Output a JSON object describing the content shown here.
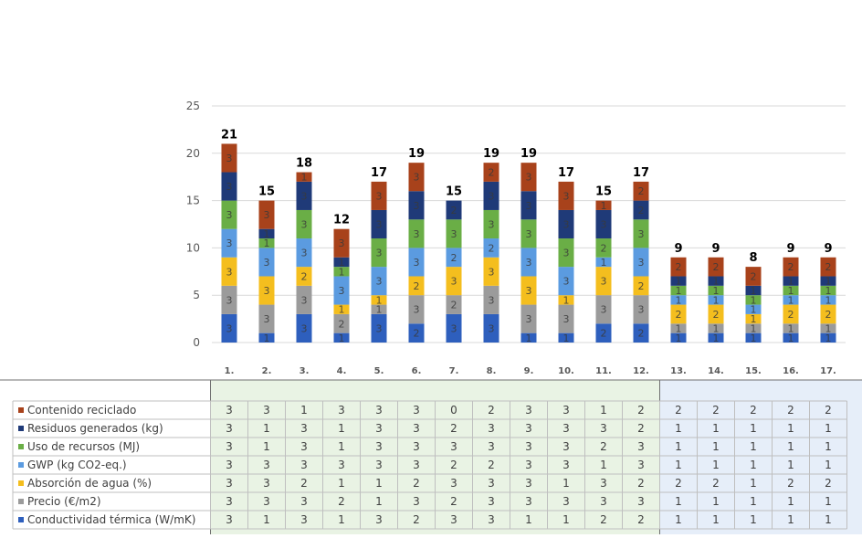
{
  "chart_data": {
    "type": "bar",
    "stacked": true,
    "categories": [
      "1.",
      "2.",
      "3.",
      "4.",
      "5.",
      "6.",
      "7.",
      "8.",
      "9.",
      "10.",
      "11.",
      "12.",
      "13.",
      "14.",
      "15.",
      "16.",
      "17."
    ],
    "ylim": [
      0,
      25
    ],
    "yticks": [
      0,
      5,
      10,
      15,
      20,
      25
    ],
    "grid": true,
    "totals": [
      21,
      15,
      18,
      12,
      17,
      19,
      15,
      19,
      19,
      17,
      15,
      17,
      9,
      9,
      8,
      9,
      9
    ],
    "series": [
      {
        "name": "Conductividad térmica (W/mK)",
        "color": "#2e5fbd",
        "values": [
          3,
          1,
          3,
          1,
          3,
          2,
          3,
          3,
          1,
          1,
          2,
          2,
          1,
          1,
          1,
          1,
          1
        ]
      },
      {
        "name": "Precio (€/m2)",
        "color": "#9b9b9b",
        "values": [
          3,
          3,
          3,
          2,
          1,
          3,
          2,
          3,
          3,
          3,
          3,
          3,
          1,
          1,
          1,
          1,
          1
        ]
      },
      {
        "name": "Absorción de agua (%)",
        "color": "#f4be1e",
        "values": [
          3,
          3,
          2,
          1,
          1,
          2,
          3,
          3,
          3,
          1,
          3,
          2,
          2,
          2,
          1,
          2,
          2
        ]
      },
      {
        "name": "GWP (kg CO2-eq.)",
        "color": "#5b9be0",
        "values": [
          3,
          3,
          3,
          3,
          3,
          3,
          2,
          2,
          3,
          3,
          1,
          3,
          1,
          1,
          1,
          1,
          1
        ]
      },
      {
        "name": "Uso de recursos (MJ)",
        "color": "#6aae46",
        "values": [
          3,
          1,
          3,
          1,
          3,
          3,
          3,
          3,
          3,
          3,
          2,
          3,
          1,
          1,
          1,
          1,
          1
        ]
      },
      {
        "name": "Residuos generados  (kg)",
        "color": "#1f3a78",
        "values": [
          3,
          1,
          3,
          1,
          3,
          3,
          2,
          3,
          3,
          3,
          3,
          2,
          1,
          1,
          1,
          1,
          1
        ]
      },
      {
        "name": "Contenido reciclado",
        "color": "#a8421b",
        "values": [
          3,
          3,
          1,
          3,
          3,
          3,
          0,
          2,
          3,
          3,
          1,
          2,
          2,
          2,
          2,
          2,
          2
        ]
      }
    ],
    "table": {
      "rows_top_to_bottom": [
        {
          "label": "Contenido reciclado",
          "series_index": 6
        },
        {
          "label": "Residuos generados  (kg)",
          "series_index": 5
        },
        {
          "label": "Uso de recursos (MJ)",
          "series_index": 4
        },
        {
          "label": "GWP (kg CO2-eq.)",
          "series_index": 3
        },
        {
          "label": "Absorción de agua (%)",
          "series_index": 2
        },
        {
          "label": "Precio (€/m2)",
          "series_index": 1
        },
        {
          "label": "Conductividad térmica (W/mK)",
          "series_index": 0
        }
      ],
      "group_colors": {
        "first": "#e9f3e4",
        "second": "#e6eef9"
      },
      "first_group_count": 12
    }
  }
}
